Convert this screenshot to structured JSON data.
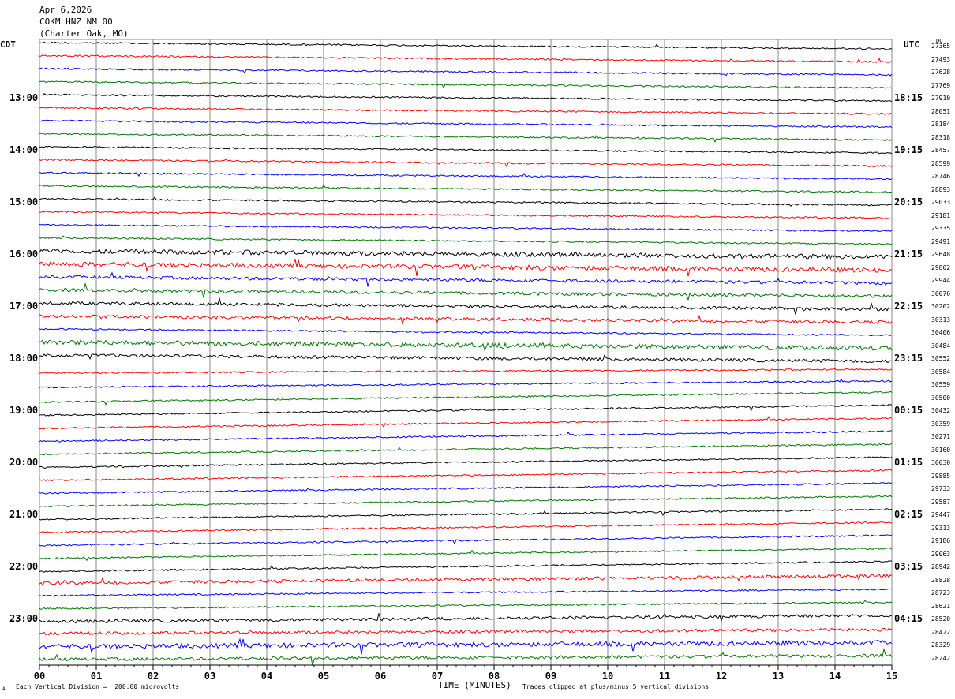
{
  "header": {
    "date": "Apr 6,2026",
    "station": "COKM HNZ NM 00",
    "location": "(Charter Oak, MO)"
  },
  "left_tz": "CDT",
  "right_tz": "UTC",
  "dc_label": "DC",
  "footer": {
    "scale_note": "Each Vertical Division =  200.00 microvolts",
    "clip_note": "Traces clipped at plus/minus 5 vertical divisions",
    "mark": "A"
  },
  "chart_data": {
    "type": "line",
    "title": "",
    "xlabel": "TIME (MINUTES)",
    "ylabel": "",
    "x_ticks": [
      "00",
      "01",
      "02",
      "03",
      "04",
      "05",
      "06",
      "07",
      "08",
      "09",
      "10",
      "11",
      "12",
      "13",
      "14",
      "15"
    ],
    "xlim": [
      0,
      15
    ],
    "grid": "vertical lines at every minute",
    "trace_colors": [
      "#000000",
      "#ff0000",
      "#0000ff",
      "#007700"
    ],
    "left_time_labels": [
      "13:00",
      "14:00",
      "15:00",
      "16:00",
      "17:00",
      "18:00",
      "19:00",
      "20:00",
      "21:00",
      "22:00",
      "23:00"
    ],
    "right_time_labels": [
      "18:15",
      "19:15",
      "20:15",
      "21:15",
      "22:15",
      "23:15",
      "00:15",
      "01:15",
      "02:15",
      "03:15",
      "04:15"
    ],
    "dc_offsets": [
      27365,
      27493,
      27628,
      27769,
      27910,
      28051,
      28184,
      28318,
      28457,
      28599,
      28746,
      28893,
      29033,
      29181,
      29335,
      29491,
      29648,
      29802,
      29944,
      30076,
      30202,
      30313,
      30406,
      30484,
      30552,
      30584,
      30559,
      30500,
      30432,
      30359,
      30271,
      30160,
      30030,
      29885,
      29733,
      29587,
      29447,
      29313,
      29186,
      29063,
      28942,
      28828,
      28723,
      28621,
      28520,
      28422,
      28329,
      28242
    ],
    "trace_noise": [
      1,
      1,
      1,
      1,
      1,
      1,
      1,
      1,
      1,
      1,
      1,
      1,
      1,
      1,
      1,
      1,
      3,
      3,
      2,
      2,
      2,
      2,
      1,
      3,
      2,
      1,
      1,
      1,
      1,
      1,
      1,
      1,
      1,
      1,
      1,
      1,
      1,
      1,
      1,
      1,
      1,
      2,
      1,
      1,
      2,
      2,
      3,
      2
    ],
    "trace_slope": [
      0.5,
      0.5,
      0.5,
      0.5,
      0.5,
      0.5,
      0.5,
      0.5,
      0.5,
      0.5,
      0.5,
      0.5,
      0.5,
      0.5,
      0.5,
      0.5,
      0.5,
      0.5,
      0.5,
      0.5,
      0.5,
      0.5,
      0.5,
      0.5,
      0.5,
      -0.3,
      -0.5,
      -0.8,
      -0.8,
      -0.8,
      -0.8,
      -0.8,
      -0.8,
      -0.8,
      -0.8,
      -0.8,
      -0.8,
      -0.8,
      -0.8,
      -0.8,
      -0.8,
      -0.6,
      -0.5,
      -0.5,
      -0.5,
      -0.3,
      -0.3,
      -0.3
    ]
  }
}
